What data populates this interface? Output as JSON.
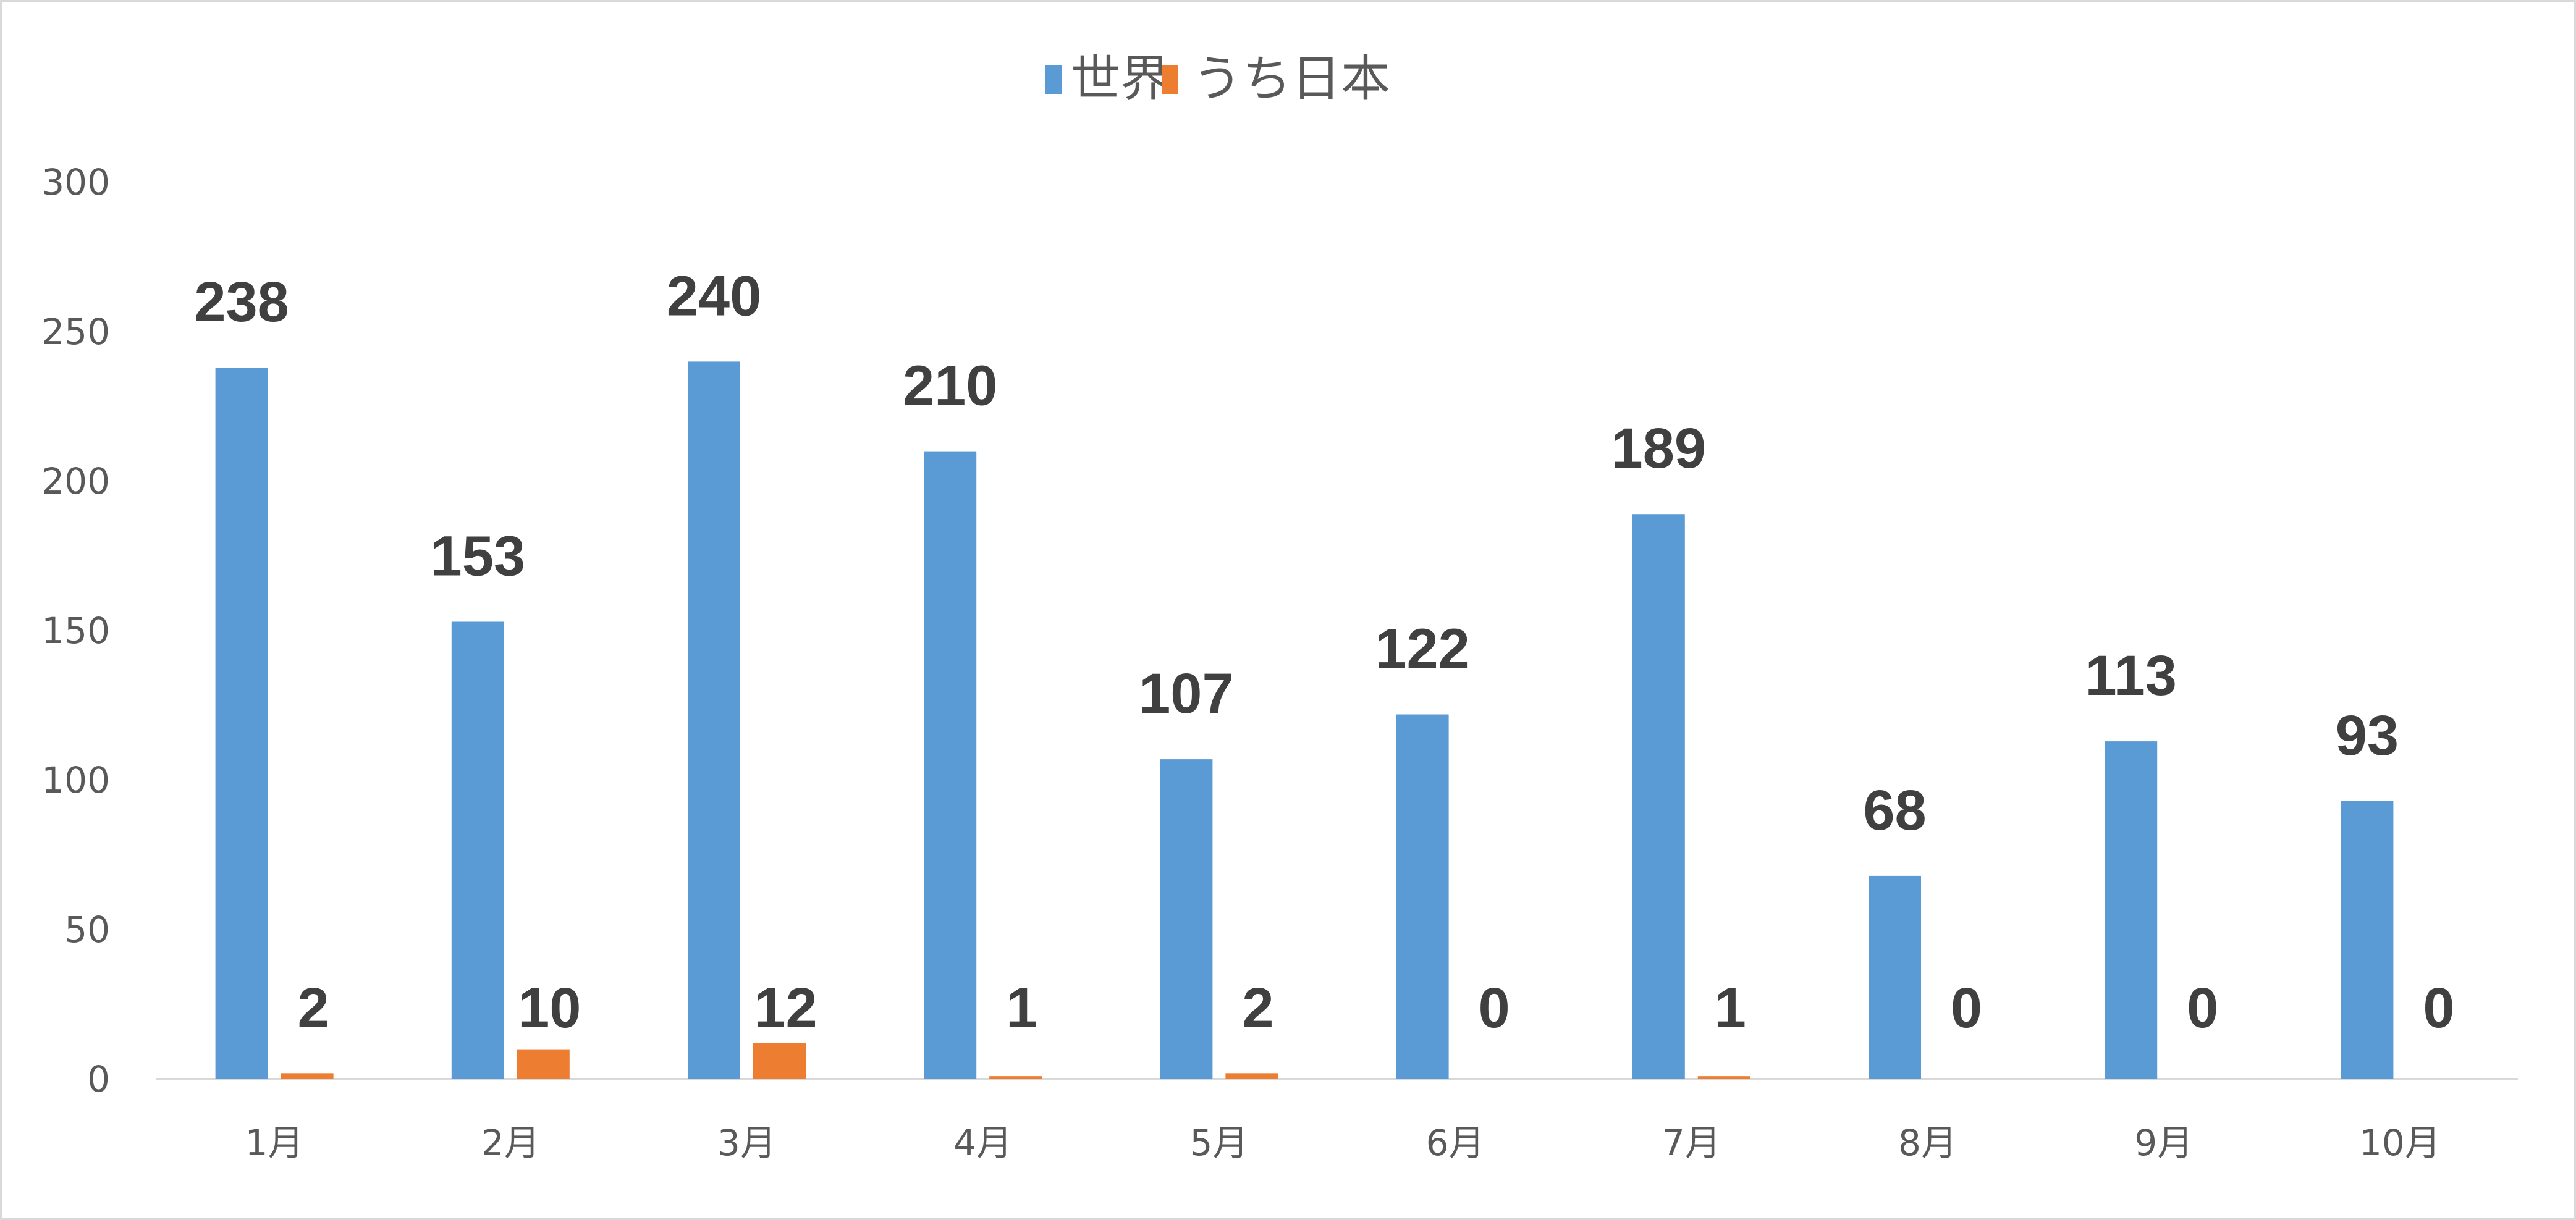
{
  "chart_data": {
    "type": "bar",
    "categories": [
      "1月",
      "2月",
      "3月",
      "4月",
      "5月",
      "6月",
      "7月",
      "8月",
      "9月",
      "10月"
    ],
    "series": [
      {
        "name": "世界",
        "color": "#5B9BD5",
        "values": [
          238,
          153,
          240,
          210,
          107,
          122,
          189,
          68,
          113,
          93
        ]
      },
      {
        "name": "うち日本",
        "color": "#ED7D31",
        "values": [
          2,
          10,
          12,
          1,
          2,
          0,
          1,
          0,
          0,
          0
        ]
      }
    ],
    "ylim": [
      0,
      300
    ],
    "yticks": [
      "0",
      "50",
      "100",
      "150",
      "200",
      "250",
      "300"
    ],
    "grid": false,
    "legend": "top-center",
    "data_labels": true
  }
}
